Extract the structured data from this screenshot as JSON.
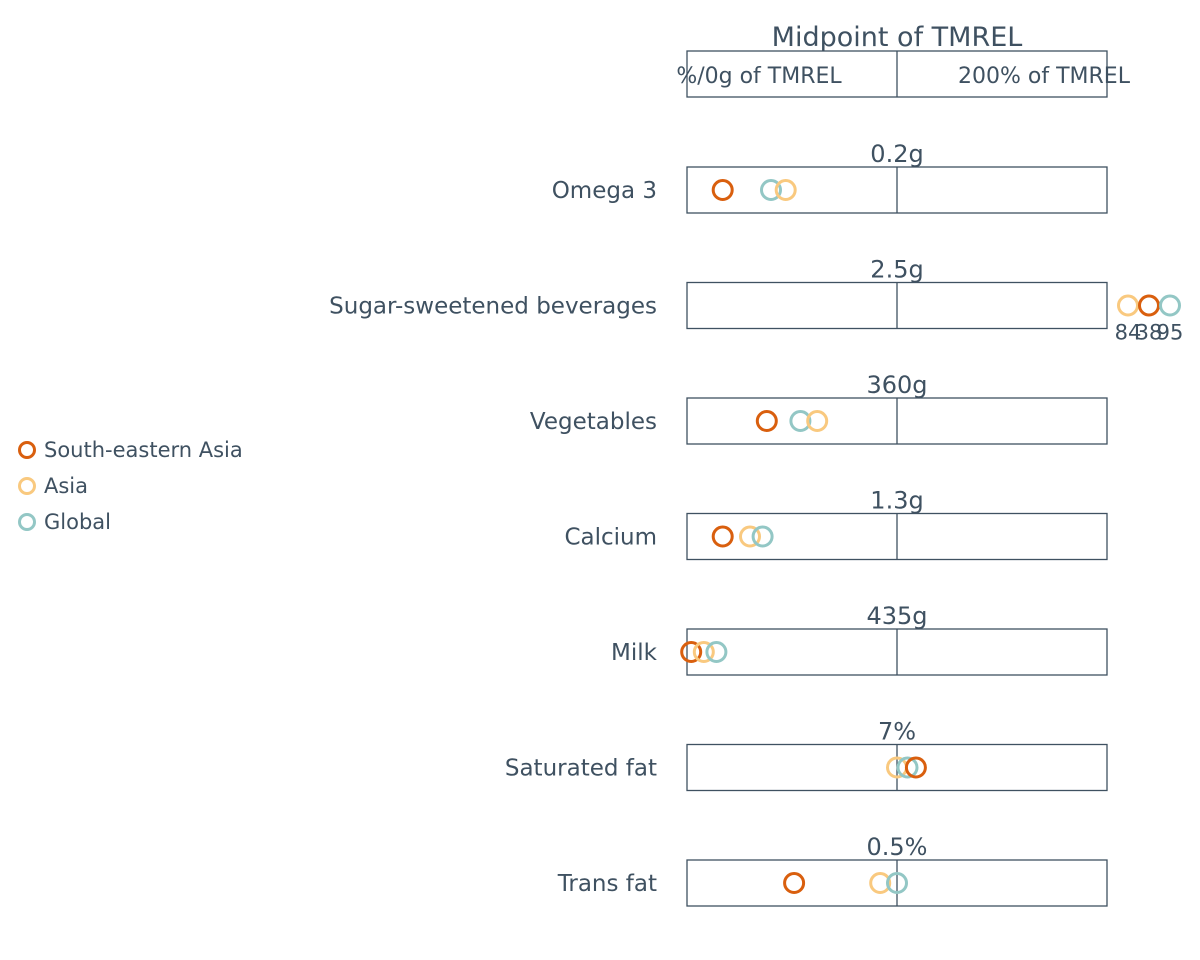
{
  "chart_data": {
    "type": "scatter",
    "title": "Midpoint of TMREL",
    "header_left": "%/0g of TMREL",
    "header_right": "200% of TMREL",
    "x_unit": "percent of TMREL midpoint",
    "xlim": [
      0,
      200
    ],
    "legend": [
      {
        "name": "South-eastern Asia",
        "color": "#d95f0e"
      },
      {
        "name": "Asia",
        "color": "#f9c97f"
      },
      {
        "name": "Global",
        "color": "#93c7c5"
      }
    ],
    "legend_position": "left",
    "rows": [
      {
        "label": "Omega 3",
        "tmrel": "0.2g",
        "points": [
          {
            "series": "South-eastern Asia",
            "x": 17
          },
          {
            "series": "Global",
            "x": 40
          },
          {
            "series": "Asia",
            "x": 47
          }
        ]
      },
      {
        "label": "Sugar-sweetened beverages",
        "tmrel": "2.5g",
        "points": [
          {
            "series": "Asia",
            "x": 210,
            "offscale_label": "84"
          },
          {
            "series": "South-eastern Asia",
            "x": 220,
            "offscale_label": "38"
          },
          {
            "series": "Global",
            "x": 230,
            "offscale_label": "95"
          }
        ]
      },
      {
        "label": "Vegetables",
        "tmrel": "360g",
        "points": [
          {
            "series": "South-eastern Asia",
            "x": 38
          },
          {
            "series": "Global",
            "x": 54
          },
          {
            "series": "Asia",
            "x": 62
          }
        ]
      },
      {
        "label": "Calcium",
        "tmrel": "1.3g",
        "points": [
          {
            "series": "South-eastern Asia",
            "x": 17
          },
          {
            "series": "Asia",
            "x": 30
          },
          {
            "series": "Global",
            "x": 36
          }
        ]
      },
      {
        "label": "Milk",
        "tmrel": "435g",
        "points": [
          {
            "series": "South-eastern Asia",
            "x": 2
          },
          {
            "series": "Asia",
            "x": 8
          },
          {
            "series": "Global",
            "x": 14
          }
        ]
      },
      {
        "label": "Saturated fat",
        "tmrel": "7%",
        "points": [
          {
            "series": "Asia",
            "x": 100
          },
          {
            "series": "Global",
            "x": 105
          },
          {
            "series": "South-eastern Asia",
            "x": 109
          }
        ]
      },
      {
        "label": "Trans fat",
        "tmrel": "0.5%",
        "points": [
          {
            "series": "South-eastern Asia",
            "x": 51
          },
          {
            "series": "Asia",
            "x": 92
          },
          {
            "series": "Global",
            "x": 100
          }
        ]
      }
    ]
  }
}
